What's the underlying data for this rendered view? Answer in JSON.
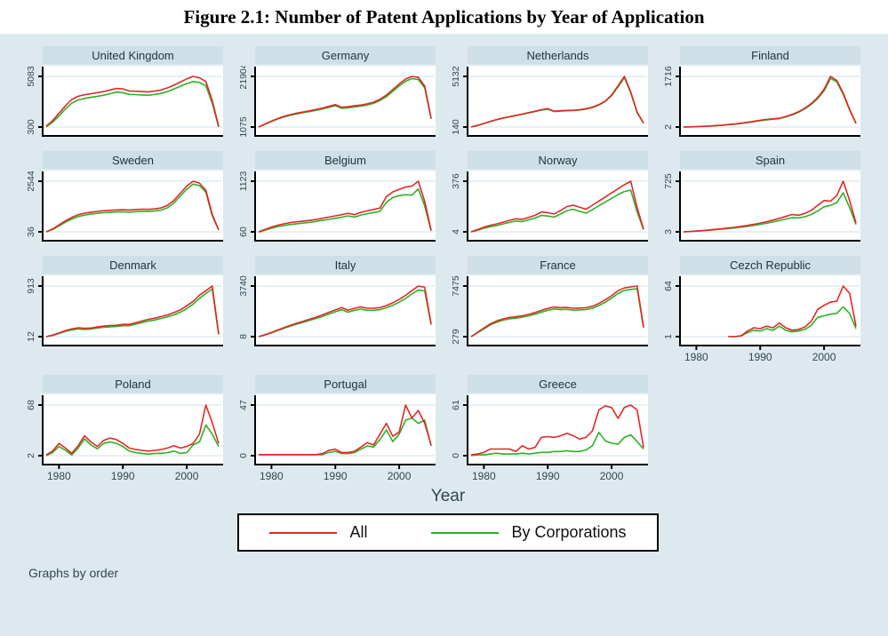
{
  "title": "Figure 2.1: Number of Patent Applications by Year of Application",
  "footnote": "Graphs by order",
  "xaxis": {
    "label": "Year",
    "ticks": [
      1980,
      1990,
      2000
    ],
    "xlim": [
      1978,
      2005
    ]
  },
  "legend": {
    "items": [
      {
        "label": "All",
        "color": "#e52626"
      },
      {
        "label": "By Corporations",
        "color": "#2bb225"
      }
    ]
  },
  "colors": {
    "background": "#dde9ee",
    "panel_title_bar": "#cfdfe8",
    "plot_background": "#ffffff",
    "gridline": "#cfe0ea",
    "axis": "#000000",
    "tick_text": "#36454f",
    "series_all": "#e52626",
    "series_corporations": "#2bb225"
  },
  "chart_data": {
    "type": "line",
    "title": "Figure 2.1: Number of Patent Applications by Year of Application",
    "xlabel": "Year",
    "x_ticks": [
      1980,
      1990,
      2000
    ],
    "xlim": [
      1978,
      2005
    ],
    "legend_position": "bottom",
    "series_names": [
      "All",
      "By Corporations"
    ],
    "panels": [
      {
        "country": "United Kingdom",
        "ymin": 300,
        "ymax": 5083,
        "start_year": 1978,
        "x_ticks_visible": false,
        "all": [
          380,
          900,
          1600,
          2300,
          2900,
          3200,
          3350,
          3450,
          3550,
          3650,
          3800,
          3950,
          3900,
          3700,
          3680,
          3650,
          3620,
          3700,
          3800,
          4000,
          4250,
          4550,
          4850,
          5083,
          4950,
          4600,
          2800,
          380
        ],
        "corp": [
          310,
          750,
          1350,
          2000,
          2550,
          2850,
          3000,
          3100,
          3200,
          3300,
          3450,
          3600,
          3550,
          3380,
          3360,
          3330,
          3300,
          3380,
          3470,
          3650,
          3900,
          4150,
          4400,
          4600,
          4500,
          4200,
          2550,
          300
        ]
      },
      {
        "country": "Germany",
        "ymin": 1075,
        "ymax": 21904,
        "start_year": 1978,
        "x_ticks_visible": false,
        "all": [
          1075,
          2300,
          3500,
          4600,
          5500,
          6200,
          6800,
          7300,
          7800,
          8300,
          8900,
          9600,
          10300,
          9200,
          9400,
          9800,
          10100,
          10600,
          11300,
          12500,
          14200,
          16500,
          18800,
          20800,
          21904,
          21500,
          18000,
          4700
        ],
        "corp": [
          1075,
          2200,
          3350,
          4400,
          5250,
          5950,
          6500,
          7000,
          7450,
          7950,
          8500,
          9200,
          9850,
          8800,
          9000,
          9350,
          9650,
          10150,
          10800,
          12000,
          13600,
          15800,
          18000,
          19900,
          21000,
          20600,
          17200,
          4400
        ]
      },
      {
        "country": "Netherlands",
        "ymin": 140,
        "ymax": 5132,
        "start_year": 1978,
        "x_ticks_visible": false,
        "all": [
          150,
          300,
          500,
          700,
          880,
          1030,
          1160,
          1290,
          1420,
          1560,
          1700,
          1850,
          1950,
          1700,
          1750,
          1780,
          1800,
          1850,
          1950,
          2100,
          2350,
          2700,
          3300,
          4200,
          5132,
          3600,
          1600,
          540
        ],
        "corp": [
          140,
          290,
          480,
          680,
          860,
          1010,
          1140,
          1260,
          1390,
          1530,
          1660,
          1810,
          1900,
          1660,
          1710,
          1740,
          1760,
          1810,
          1910,
          2060,
          2300,
          2650,
          3230,
          4100,
          5000,
          3500,
          1550,
          520
        ]
      },
      {
        "country": "Finland",
        "ymin": 2,
        "ymax": 1716,
        "start_year": 1978,
        "x_ticks_visible": false,
        "all": [
          2,
          8,
          15,
          25,
          35,
          50,
          65,
          85,
          105,
          130,
          160,
          195,
          230,
          260,
          280,
          300,
          360,
          430,
          520,
          640,
          800,
          1000,
          1280,
          1716,
          1580,
          1150,
          600,
          130
        ],
        "corp": [
          2,
          7,
          13,
          22,
          32,
          46,
          60,
          79,
          98,
          122,
          150,
          184,
          218,
          247,
          266,
          286,
          344,
          412,
          500,
          616,
          770,
          965,
          1230,
          1650,
          1530,
          1110,
          575,
          120
        ]
      },
      {
        "country": "Sweden",
        "ymin": 36,
        "ymax": 2544,
        "start_year": 1978,
        "x_ticks_visible": false,
        "all": [
          36,
          180,
          380,
          580,
          750,
          880,
          960,
          1010,
          1050,
          1080,
          1100,
          1120,
          1130,
          1120,
          1140,
          1160,
          1150,
          1170,
          1220,
          1350,
          1600,
          1950,
          2300,
          2544,
          2450,
          2100,
          900,
          140
        ],
        "corp": [
          36,
          150,
          330,
          510,
          670,
          790,
          865,
          915,
          950,
          980,
          1000,
          1020,
          1030,
          1015,
          1035,
          1055,
          1045,
          1065,
          1110,
          1230,
          1470,
          1810,
          2150,
          2400,
          2330,
          2000,
          830,
          120
        ]
      },
      {
        "country": "Belgium",
        "ymin": 60,
        "ymax": 1123,
        "start_year": 1978,
        "x_ticks_visible": false,
        "all": [
          60,
          110,
          160,
          200,
          230,
          255,
          270,
          285,
          300,
          320,
          345,
          370,
          395,
          420,
          450,
          420,
          470,
          500,
          530,
          560,
          800,
          900,
          950,
          1000,
          1020,
          1123,
          700,
          95
        ],
        "corp": [
          55,
          95,
          135,
          170,
          195,
          215,
          230,
          245,
          260,
          278,
          300,
          322,
          345,
          368,
          395,
          370,
          412,
          440,
          465,
          490,
          680,
          780,
          820,
          840,
          830,
          960,
          600,
          80
        ]
      },
      {
        "country": "Norway",
        "ymin": 4,
        "ymax": 376,
        "start_year": 1978,
        "x_ticks_visible": false,
        "all": [
          4,
          20,
          38,
          52,
          62,
          75,
          88,
          100,
          96,
          110,
          125,
          150,
          145,
          135,
          160,
          190,
          200,
          185,
          170,
          200,
          230,
          260,
          290,
          320,
          350,
          376,
          180,
          25
        ],
        "corp": [
          4,
          15,
          30,
          42,
          50,
          62,
          73,
          83,
          80,
          92,
          105,
          125,
          120,
          112,
          135,
          160,
          170,
          155,
          142,
          168,
          195,
          222,
          250,
          278,
          300,
          310,
          150,
          20
        ]
      },
      {
        "country": "Spain",
        "ymin": 3,
        "ymax": 725,
        "start_year": 1978,
        "x_ticks_visible": false,
        "all": [
          3,
          8,
          15,
          22,
          30,
          38,
          47,
          57,
          68,
          80,
          94,
          110,
          128,
          148,
          170,
          195,
          222,
          250,
          240,
          265,
          310,
          380,
          450,
          440,
          520,
          725,
          450,
          130
        ],
        "corp": [
          3,
          7,
          13,
          19,
          26,
          33,
          41,
          50,
          59,
          70,
          82,
          96,
          110,
          126,
          144,
          163,
          185,
          205,
          200,
          218,
          250,
          300,
          360,
          380,
          420,
          560,
          350,
          110
        ]
      },
      {
        "country": "Denmark",
        "ymin": 12,
        "ymax": 913,
        "start_year": 1978,
        "x_ticks_visible": false,
        "all": [
          12,
          40,
          80,
          120,
          150,
          170,
          160,
          165,
          185,
          200,
          210,
          215,
          230,
          230,
          260,
          290,
          320,
          340,
          370,
          400,
          440,
          490,
          560,
          640,
          750,
          830,
          913,
          60
        ],
        "corp": [
          12,
          33,
          68,
          105,
          132,
          150,
          140,
          146,
          165,
          178,
          188,
          192,
          206,
          206,
          234,
          262,
          290,
          308,
          336,
          364,
          400,
          448,
          512,
          590,
          695,
          780,
          860,
          50
        ]
      },
      {
        "country": "Italy",
        "ymin": 8,
        "ymax": 3740,
        "start_year": 1978,
        "x_ticks_visible": false,
        "all": [
          8,
          150,
          320,
          500,
          680,
          850,
          1000,
          1150,
          1300,
          1450,
          1620,
          1800,
          1980,
          2150,
          1950,
          2100,
          2200,
          2100,
          2100,
          2150,
          2300,
          2500,
          2750,
          3050,
          3400,
          3740,
          3650,
          950
        ],
        "corp": [
          8,
          130,
          290,
          460,
          630,
          790,
          930,
          1070,
          1210,
          1350,
          1500,
          1670,
          1840,
          2000,
          1810,
          1950,
          2040,
          1950,
          1950,
          2000,
          2140,
          2320,
          2550,
          2830,
          3150,
          3450,
          3380,
          880
        ]
      },
      {
        "country": "France",
        "ymin": 279,
        "ymax": 7475,
        "start_year": 1978,
        "x_ticks_visible": false,
        "all": [
          279,
          900,
          1500,
          2100,
          2500,
          2800,
          3000,
          3100,
          3250,
          3450,
          3700,
          4000,
          4300,
          4500,
          4400,
          4450,
          4300,
          4350,
          4400,
          4600,
          5000,
          5500,
          6100,
          6800,
          7200,
          7350,
          7475,
          1650
        ],
        "corp": [
          279,
          820,
          1380,
          1950,
          2330,
          2620,
          2810,
          2900,
          3050,
          3230,
          3470,
          3750,
          4030,
          4220,
          4120,
          4170,
          4030,
          4080,
          4130,
          4320,
          4700,
          5170,
          5750,
          6420,
          6850,
          7000,
          7100,
          1500
        ]
      },
      {
        "country": "Cezch Republic",
        "ymin": 1,
        "ymax": 64,
        "start_year": 1985,
        "x_ticks_visible": true,
        "all": [
          1,
          1,
          2,
          8,
          12,
          11,
          14,
          12,
          18,
          12,
          9,
          10,
          13,
          20,
          35,
          40,
          44,
          45,
          64,
          55,
          14
        ],
        "corp": [
          1,
          1,
          2,
          6,
          9,
          8,
          11,
          9,
          14,
          9,
          7,
          8,
          10,
          15,
          25,
          27,
          29,
          30,
          38,
          30,
          11
        ]
      },
      {
        "country": "Poland",
        "ymin": 2,
        "ymax": 68,
        "start_year": 1978,
        "x_ticks_visible": true,
        "all": [
          3,
          8,
          18,
          12,
          5,
          15,
          28,
          20,
          14,
          22,
          25,
          23,
          18,
          12,
          10,
          9,
          8,
          9,
          10,
          12,
          15,
          12,
          14,
          18,
          30,
          68,
          45,
          18
        ],
        "corp": [
          2,
          6,
          14,
          9,
          3,
          12,
          24,
          16,
          11,
          18,
          20,
          18,
          14,
          8,
          6,
          5,
          4,
          5,
          5,
          6,
          8,
          5,
          6,
          16,
          20,
          42,
          30,
          14
        ]
      },
      {
        "country": "Portugal",
        "ymin": 0,
        "ymax": 47,
        "start_year": 1978,
        "x_ticks_visible": true,
        "all": [
          1,
          1,
          1,
          1,
          1,
          1,
          1,
          1,
          1,
          1,
          2,
          5,
          6,
          3,
          3,
          4,
          8,
          12,
          10,
          20,
          30,
          18,
          22,
          47,
          35,
          42,
          30,
          10
        ],
        "corp": [
          1,
          1,
          1,
          1,
          1,
          1,
          1,
          1,
          1,
          1,
          1,
          3,
          4,
          2,
          2,
          3,
          6,
          9,
          8,
          15,
          24,
          13,
          20,
          33,
          35,
          30,
          33,
          9
        ]
      },
      {
        "country": "Greece",
        "ymin": 0,
        "ymax": 61,
        "start_year": 1978,
        "x_ticks_visible": true,
        "all": [
          1,
          2,
          4,
          8,
          8,
          8,
          8,
          5,
          12,
          8,
          10,
          22,
          23,
          22,
          24,
          27,
          24,
          20,
          22,
          30,
          55,
          60,
          58,
          45,
          58,
          61,
          55,
          10
        ],
        "corp": [
          0,
          1,
          1,
          2,
          3,
          2,
          2,
          2,
          3,
          2,
          3,
          4,
          4,
          5,
          5,
          6,
          5,
          5,
          7,
          12,
          28,
          18,
          15,
          14,
          22,
          25,
          17,
          8
        ]
      }
    ]
  }
}
